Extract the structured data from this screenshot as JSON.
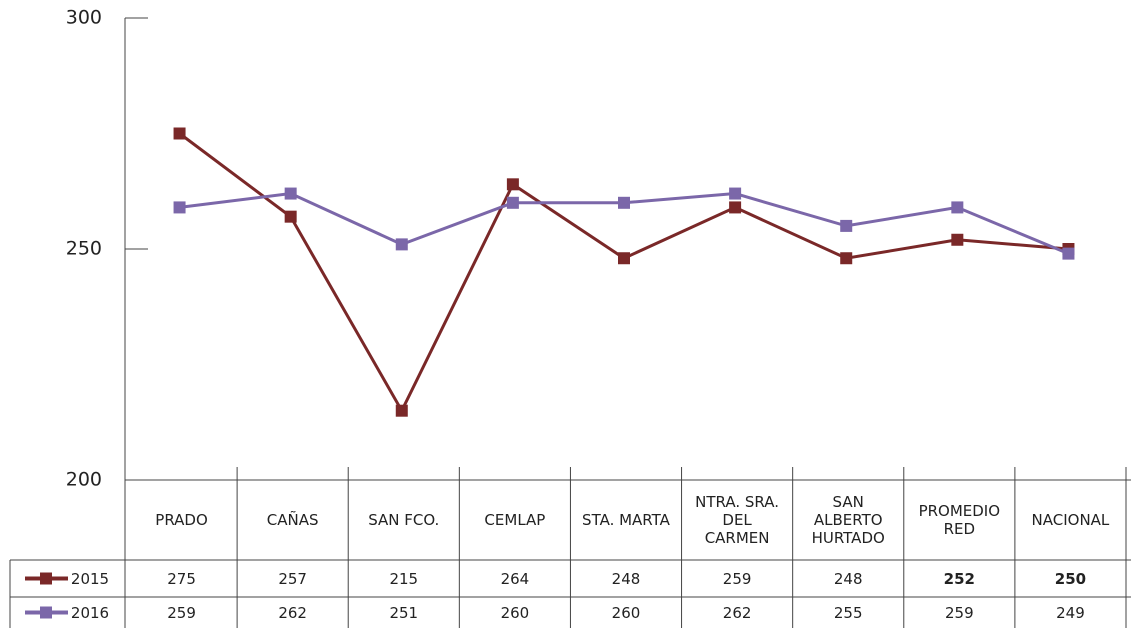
{
  "chart_data": {
    "type": "line",
    "categories": [
      "PRADO",
      "CAÑAS",
      "SAN FCO.",
      "CEMLAP",
      "STA. MARTA",
      "NTRA. SRA. DEL CARMEN",
      "SAN ALBERTO HURTADO",
      "PROMEDIO RED",
      "NACIONAL"
    ],
    "series": [
      {
        "name": "2015",
        "color": "#7a2828",
        "values": [
          275,
          257,
          215,
          264,
          248,
          259,
          248,
          252,
          250
        ]
      },
      {
        "name": "2016",
        "color": "#7b67a9",
        "values": [
          259,
          262,
          251,
          260,
          260,
          262,
          255,
          259,
          249
        ]
      }
    ],
    "ylim": [
      200,
      300
    ],
    "yticks": [
      200,
      250,
      300
    ]
  }
}
